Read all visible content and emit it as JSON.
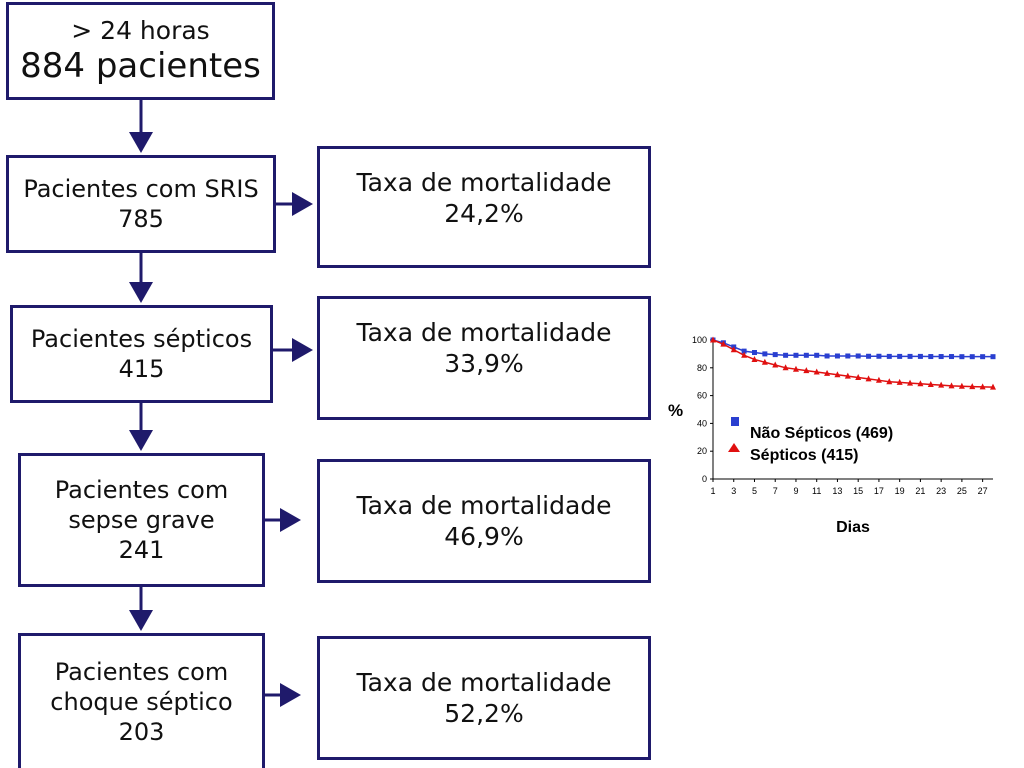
{
  "top_box": {
    "line1": "> 24 horas",
    "line2": "884 pacientes"
  },
  "stages": [
    {
      "lines": [
        "Pacientes com SRIS",
        "785"
      ],
      "mortality_label": "Taxa de mortalidade",
      "mortality_value": "24,2%"
    },
    {
      "lines": [
        "Pacientes sépticos",
        "415"
      ],
      "mortality_label": "Taxa de mortalidade",
      "mortality_value": "33,9%"
    },
    {
      "lines": [
        "Pacientes com",
        "sepse grave",
        "241"
      ],
      "mortality_label": "Taxa de mortalidade",
      "mortality_value": "46,9%"
    },
    {
      "lines": [
        "Pacientes com",
        "choque séptico",
        "203"
      ],
      "mortality_label": "Taxa de mortalidade",
      "mortality_value": "52,2%"
    }
  ],
  "colors": {
    "box_border": "#1f1a6b",
    "arrow": "#1f1a6b",
    "series_nonseptic": "#2a3fd0",
    "series_septic": "#e01010"
  },
  "chart_data": {
    "type": "line",
    "xlabel": "Dias",
    "ylabel": "%",
    "xlim": [
      1,
      28
    ],
    "ylim": [
      0,
      100
    ],
    "x_ticks": [
      1,
      3,
      5,
      7,
      9,
      11,
      13,
      15,
      17,
      19,
      21,
      23,
      25,
      27
    ],
    "y_ticks": [
      0,
      20,
      40,
      60,
      80,
      100
    ],
    "legend_position": "left-middle",
    "x": [
      1,
      2,
      3,
      4,
      5,
      6,
      7,
      8,
      9,
      10,
      11,
      12,
      13,
      14,
      15,
      16,
      17,
      18,
      19,
      20,
      21,
      22,
      23,
      24,
      25,
      26,
      27,
      28
    ],
    "series": [
      {
        "name": "Não Sépticos (469)",
        "marker": "square",
        "color": "#2a3fd0",
        "values": [
          100,
          98,
          95,
          92,
          91,
          90,
          89.5,
          89,
          89,
          89,
          89,
          88.5,
          88.5,
          88.5,
          88.5,
          88.3,
          88.3,
          88.2,
          88.2,
          88.2,
          88.2,
          88.1,
          88.1,
          88.1,
          88,
          88,
          88,
          88
        ]
      },
      {
        "name": "Sépticos (415)",
        "marker": "triangle",
        "color": "#e01010",
        "values": [
          100,
          97,
          93,
          89,
          86,
          84,
          82,
          80,
          79,
          78,
          77,
          76,
          75,
          74,
          73,
          72,
          71,
          70,
          69.5,
          69,
          68.5,
          68,
          67.5,
          67,
          66.7,
          66.5,
          66.3,
          66.1
        ]
      }
    ]
  }
}
